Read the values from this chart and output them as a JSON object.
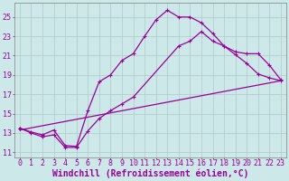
{
  "xlabel": "Windchill (Refroidissement éolien,°C)",
  "bg_color": "#cce8e8",
  "grid_color": "#b0c8c8",
  "line_color": "#990099",
  "xlim": [
    -0.5,
    23.5
  ],
  "ylim": [
    10.5,
    26.5
  ],
  "xticks": [
    0,
    1,
    2,
    3,
    4,
    5,
    6,
    7,
    8,
    9,
    10,
    11,
    12,
    13,
    14,
    15,
    16,
    17,
    18,
    19,
    20,
    21,
    22,
    23
  ],
  "yticks": [
    11,
    13,
    15,
    17,
    19,
    21,
    23,
    25
  ],
  "curve1_x": [
    0,
    1,
    2,
    3,
    4,
    5,
    6,
    7,
    8,
    9,
    10,
    11,
    12,
    13,
    14,
    15,
    16,
    17,
    18,
    19,
    20,
    21,
    22,
    23
  ],
  "curve1_y": [
    13.5,
    13.1,
    12.8,
    13.3,
    11.7,
    11.6,
    15.3,
    18.3,
    19.0,
    20.5,
    21.2,
    23.0,
    24.7,
    25.7,
    25.0,
    25.0,
    24.4,
    23.3,
    22.0,
    21.1,
    20.2,
    19.1,
    18.7,
    18.4
  ],
  "curve2_x": [
    0,
    1,
    2,
    3,
    4,
    5,
    6,
    7,
    8,
    9,
    10,
    14,
    15,
    16,
    17,
    18,
    19,
    20,
    21,
    22,
    23
  ],
  "curve2_y": [
    13.5,
    13.0,
    12.6,
    12.8,
    11.5,
    11.5,
    13.2,
    14.5,
    15.3,
    16.0,
    16.7,
    22.0,
    22.5,
    23.5,
    22.5,
    22.0,
    21.4,
    21.2,
    21.2,
    20.0,
    18.5
  ],
  "curve3_x": [
    0,
    23
  ],
  "curve3_y": [
    13.3,
    18.4
  ],
  "font_size": 7,
  "tick_font_size": 6
}
